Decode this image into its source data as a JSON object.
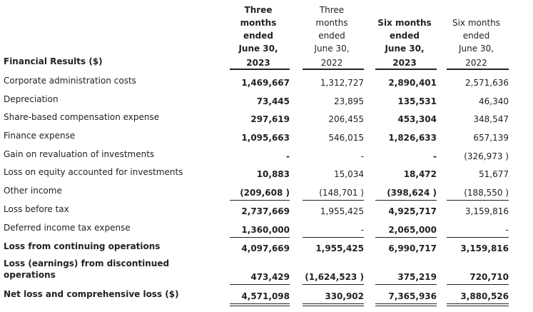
{
  "table": {
    "header_label": "Financial Results ($)",
    "columns": [
      {
        "lines": [
          "Three",
          "months",
          "ended",
          "June 30,",
          "2023"
        ],
        "bold": true
      },
      {
        "lines": [
          "Three",
          "months",
          "ended",
          "June 30,",
          "2022"
        ],
        "bold": false
      },
      {
        "lines": [
          "Six months",
          "ended",
          "June 30,",
          "2023"
        ],
        "bold": true
      },
      {
        "lines": [
          "Six months",
          "ended",
          "June 30,",
          "2022"
        ],
        "bold": false
      }
    ],
    "rows": [
      {
        "label": "Corporate administration costs",
        "cells": [
          "1,469,667",
          "1,312,727",
          "2,890,401",
          "2,571,636"
        ]
      },
      {
        "label": "Depreciation",
        "cells": [
          "73,445",
          "23,895",
          "135,531",
          "46,340"
        ]
      },
      {
        "label": "Share-based compensation expense",
        "cells": [
          "297,619",
          "206,455",
          "453,304",
          "348,547"
        ]
      },
      {
        "label": "Finance expense",
        "cells": [
          "1,095,663",
          "546,015",
          "1,826,633",
          "657,139"
        ]
      },
      {
        "label": "Gain on revaluation of investments",
        "cells": [
          "-",
          "-",
          "-",
          "(326,973 )"
        ]
      },
      {
        "label": "Loss on equity accounted for investments",
        "cells": [
          "10,883",
          "15,034",
          "18,472",
          "51,677"
        ]
      },
      {
        "label": "Other income",
        "cells": [
          "(209,608 )",
          "(148,701 )",
          "(398,624 )",
          "(188,550 )"
        ]
      },
      {
        "label": "Loss before tax",
        "cells": [
          "2,737,669",
          "1,955,425",
          "4,925,717",
          "3,159,816"
        ]
      },
      {
        "label": "Deferred income tax expense",
        "cells": [
          "1,360,000",
          "-",
          "2,065,000",
          "-"
        ]
      },
      {
        "label": "Loss from continuing operations",
        "cells": [
          "4,097,669",
          "1,955,425",
          "6,990,717",
          "3,159,816"
        ]
      },
      {
        "label": "Loss (earnings) from discontinued operations",
        "cells": [
          "473,429",
          "(1,624,523 )",
          "375,219",
          "720,710"
        ]
      },
      {
        "label": "Net loss and comprehensive loss ($)",
        "cells": [
          "4,571,098",
          "330,902",
          "7,365,936",
          "3,880,526"
        ]
      }
    ]
  }
}
